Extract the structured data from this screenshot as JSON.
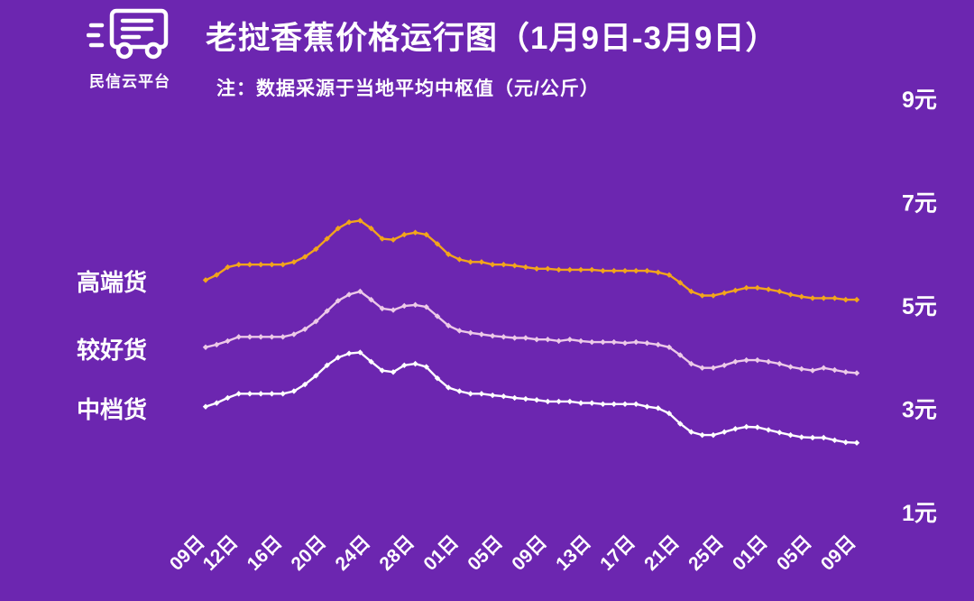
{
  "app": {
    "logo_text": "民信云平台",
    "title": "老挝香蕉价格运行图（1月9日-3月9日）",
    "subtitle": "注：数据采源于当地平均中枢值（元/公斤）"
  },
  "colors": {
    "background": "#6C26B0",
    "text": "#FFFFFF",
    "premium_line": "#F2A51C",
    "better_line": "#ECC9E8",
    "medium_line": "#FFFFFF"
  },
  "chart_data": {
    "type": "line",
    "title": "老挝香蕉价格运行图（1月9日-3月9日）",
    "ylabel": "元/公斤",
    "ylim": [
      1,
      9
    ],
    "grid": false,
    "legend_position": "left",
    "y_ticks": [
      "9元",
      "7元",
      "5元",
      "3元",
      "1元"
    ],
    "y_tick_values": [
      9,
      7,
      5,
      3,
      1
    ],
    "x_tick_labels": [
      "09日",
      "12日",
      "16日",
      "20日",
      "24日",
      "28日",
      "01日",
      "05日",
      "09日",
      "13日",
      "17日",
      "21日",
      "25日",
      "01日",
      "05日",
      "09日"
    ],
    "x_tick_indices": [
      0,
      3,
      7,
      11,
      15,
      19,
      23,
      27,
      31,
      35,
      39,
      43,
      47,
      51,
      55,
      59
    ],
    "x_range_note": "daily points from 1月9日 to 3月9日",
    "series": [
      {
        "name": "高端货",
        "color": "#F2A51C",
        "values": [
          5.5,
          5.6,
          5.75,
          5.8,
          5.8,
          5.8,
          5.8,
          5.8,
          5.85,
          5.95,
          6.1,
          6.3,
          6.5,
          6.62,
          6.65,
          6.5,
          6.3,
          6.28,
          6.38,
          6.42,
          6.38,
          6.2,
          6.0,
          5.9,
          5.85,
          5.85,
          5.8,
          5.8,
          5.78,
          5.75,
          5.72,
          5.72,
          5.7,
          5.7,
          5.7,
          5.7,
          5.68,
          5.68,
          5.68,
          5.68,
          5.68,
          5.65,
          5.6,
          5.45,
          5.28,
          5.2,
          5.2,
          5.25,
          5.3,
          5.35,
          5.35,
          5.32,
          5.28,
          5.22,
          5.18,
          5.15,
          5.15,
          5.15,
          5.12,
          5.12
        ]
      },
      {
        "name": "较好货",
        "color": "#ECC9E8",
        "values": [
          4.2,
          4.25,
          4.32,
          4.4,
          4.4,
          4.4,
          4.4,
          4.4,
          4.45,
          4.55,
          4.7,
          4.9,
          5.1,
          5.22,
          5.28,
          5.12,
          4.95,
          4.92,
          5.0,
          5.02,
          4.98,
          4.8,
          4.62,
          4.52,
          4.48,
          4.45,
          4.42,
          4.4,
          4.38,
          4.38,
          4.35,
          4.35,
          4.32,
          4.35,
          4.32,
          4.3,
          4.3,
          4.3,
          4.28,
          4.3,
          4.28,
          4.25,
          4.2,
          4.05,
          3.88,
          3.8,
          3.8,
          3.85,
          3.92,
          3.95,
          3.95,
          3.92,
          3.88,
          3.82,
          3.78,
          3.75,
          3.8,
          3.76,
          3.72,
          3.7
        ]
      },
      {
        "name": "中档货",
        "color": "#FFFFFF",
        "values": [
          3.05,
          3.12,
          3.22,
          3.3,
          3.3,
          3.3,
          3.3,
          3.3,
          3.35,
          3.48,
          3.65,
          3.85,
          4.0,
          4.08,
          4.1,
          3.92,
          3.75,
          3.72,
          3.85,
          3.88,
          3.82,
          3.6,
          3.42,
          3.35,
          3.3,
          3.3,
          3.27,
          3.25,
          3.22,
          3.2,
          3.18,
          3.15,
          3.15,
          3.15,
          3.12,
          3.12,
          3.1,
          3.1,
          3.1,
          3.1,
          3.05,
          3.02,
          2.92,
          2.72,
          2.56,
          2.5,
          2.5,
          2.56,
          2.62,
          2.66,
          2.65,
          2.6,
          2.55,
          2.5,
          2.46,
          2.45,
          2.45,
          2.4,
          2.36,
          2.35
        ]
      }
    ]
  }
}
